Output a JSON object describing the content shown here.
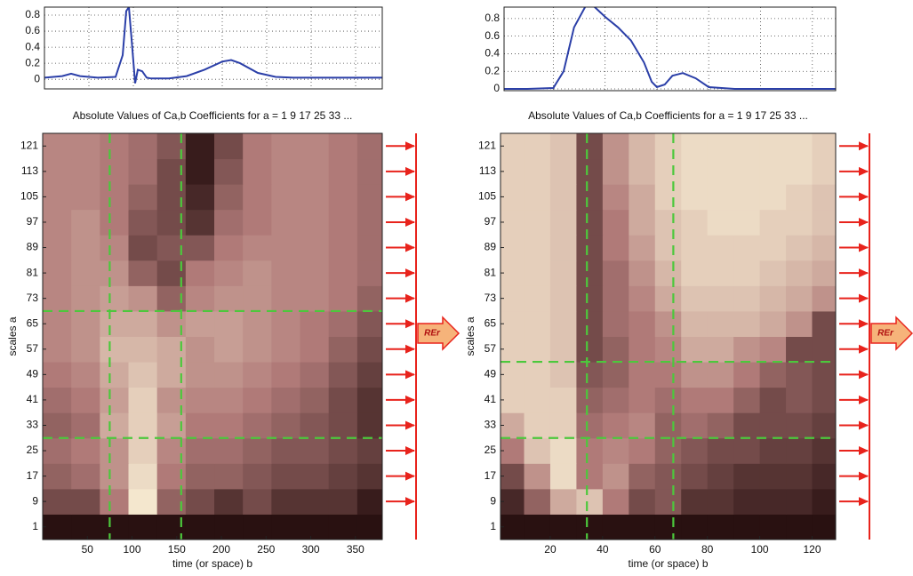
{
  "chart_data": [
    {
      "type": "line",
      "color": "#2b3fa8",
      "x": [
        0,
        20,
        30,
        40,
        60,
        80,
        88,
        92,
        95,
        98,
        102,
        105,
        110,
        115,
        120,
        140,
        160,
        180,
        200,
        210,
        220,
        240,
        260,
        280,
        300,
        330,
        360,
        380
      ],
      "values": [
        0.02,
        0.04,
        0.07,
        0.04,
        0.02,
        0.03,
        0.3,
        0.85,
        0.9,
        0.5,
        -0.05,
        0.12,
        0.1,
        0.02,
        0.01,
        0.01,
        0.04,
        0.12,
        0.22,
        0.24,
        0.2,
        0.08,
        0.03,
        0.02,
        0.02,
        0.02,
        0.02,
        0.02
      ],
      "xlim": [
        0,
        380
      ],
      "ylim": [
        -0.12,
        0.9
      ],
      "yticks": [
        0,
        0.2,
        0.4,
        0.6,
        0.8
      ],
      "xgrid": [
        50,
        100,
        150,
        200,
        250,
        300,
        350
      ]
    },
    {
      "type": "heatmap",
      "title": "Absolute Values of Ca,b Coefficients for a =  1 9 17 25 33 ...",
      "xlabel": "time (or space) b",
      "ylabel": "scales a",
      "x": [
        16,
        48,
        80,
        112,
        144,
        176,
        208,
        240,
        272,
        304,
        336,
        368
      ],
      "y": [
        1,
        9,
        17,
        25,
        33,
        41,
        49,
        57,
        65,
        73,
        81,
        89,
        97,
        105,
        113,
        121
      ],
      "z": [
        [
          0.05,
          0.05,
          0.05,
          0.05,
          0.05,
          0.05,
          0.05,
          0.05,
          0.05,
          0.05,
          0.05,
          0.05
        ],
        [
          0.3,
          0.3,
          0.5,
          0.95,
          0.4,
          0.3,
          0.2,
          0.3,
          0.2,
          0.2,
          0.2,
          0.1
        ],
        [
          0.4,
          0.45,
          0.6,
          0.9,
          0.5,
          0.4,
          0.4,
          0.35,
          0.3,
          0.3,
          0.25,
          0.2
        ],
        [
          0.45,
          0.5,
          0.6,
          0.85,
          0.55,
          0.45,
          0.45,
          0.4,
          0.35,
          0.35,
          0.3,
          0.25
        ],
        [
          0.4,
          0.45,
          0.7,
          0.85,
          0.65,
          0.5,
          0.5,
          0.45,
          0.4,
          0.35,
          0.3,
          0.2
        ],
        [
          0.45,
          0.5,
          0.65,
          0.85,
          0.6,
          0.55,
          0.55,
          0.5,
          0.45,
          0.4,
          0.3,
          0.2
        ],
        [
          0.5,
          0.55,
          0.7,
          0.8,
          0.7,
          0.6,
          0.6,
          0.55,
          0.5,
          0.45,
          0.35,
          0.25
        ],
        [
          0.55,
          0.6,
          0.75,
          0.75,
          0.7,
          0.6,
          0.65,
          0.6,
          0.55,
          0.5,
          0.4,
          0.3
        ],
        [
          0.55,
          0.6,
          0.7,
          0.7,
          0.6,
          0.65,
          0.65,
          0.6,
          0.55,
          0.5,
          0.45,
          0.35
        ],
        [
          0.55,
          0.6,
          0.65,
          0.6,
          0.4,
          0.55,
          0.6,
          0.6,
          0.55,
          0.55,
          0.5,
          0.4
        ],
        [
          0.55,
          0.6,
          0.6,
          0.4,
          0.3,
          0.5,
          0.55,
          0.6,
          0.55,
          0.55,
          0.5,
          0.45
        ],
        [
          0.55,
          0.6,
          0.55,
          0.3,
          0.35,
          0.35,
          0.5,
          0.55,
          0.55,
          0.55,
          0.5,
          0.45
        ],
        [
          0.55,
          0.6,
          0.5,
          0.35,
          0.3,
          0.2,
          0.45,
          0.5,
          0.55,
          0.55,
          0.5,
          0.45
        ],
        [
          0.55,
          0.55,
          0.5,
          0.4,
          0.3,
          0.15,
          0.4,
          0.5,
          0.55,
          0.55,
          0.5,
          0.45
        ],
        [
          0.55,
          0.55,
          0.5,
          0.45,
          0.3,
          0.1,
          0.35,
          0.5,
          0.55,
          0.55,
          0.5,
          0.45
        ],
        [
          0.55,
          0.55,
          0.5,
          0.45,
          0.35,
          0.1,
          0.3,
          0.5,
          0.55,
          0.55,
          0.5,
          0.45
        ]
      ],
      "colormap": [
        "#1a0505",
        "#b07a78",
        "#fbf3d8"
      ],
      "xlim": [
        0,
        380
      ],
      "ylim": [
        -3,
        125
      ],
      "xticks": [
        50,
        100,
        150,
        200,
        250,
        300,
        350
      ],
      "yticks": [
        1,
        9,
        17,
        25,
        33,
        41,
        49,
        57,
        65,
        73,
        81,
        89,
        97,
        105,
        113,
        121
      ],
      "vlines": [
        75,
        155
      ],
      "hlines": [
        69,
        29
      ],
      "line_color": "#4cc83c",
      "annotation": "REr"
    },
    {
      "type": "line",
      "color": "#2b3fa8",
      "x": [
        1,
        10,
        20,
        24,
        28,
        33,
        36,
        40,
        45,
        50,
        55,
        58,
        60,
        63,
        66,
        70,
        75,
        80,
        90,
        100,
        110,
        120,
        129
      ],
      "values": [
        0,
        0,
        0.01,
        0.2,
        0.7,
        0.97,
        0.93,
        0.82,
        0.7,
        0.55,
        0.3,
        0.08,
        0.02,
        0.05,
        0.15,
        0.18,
        0.12,
        0.02,
        0,
        0,
        0,
        0,
        0
      ],
      "xlim": [
        1,
        129
      ],
      "ylim": [
        -0.02,
        0.93
      ],
      "yticks": [
        0,
        0.2,
        0.4,
        0.6,
        0.8
      ],
      "xgrid": [
        20,
        40,
        60,
        80,
        100,
        120
      ]
    },
    {
      "type": "heatmap",
      "title": "Absolute Values of Ca,b Coefficients for a =  1 9 17 25 33 ...",
      "xlabel": "time (or space) b",
      "ylabel": "scales a",
      "x": [
        5,
        15,
        25,
        35,
        45,
        55,
        65,
        75,
        85,
        95,
        105,
        115,
        125
      ],
      "y": [
        1,
        9,
        17,
        25,
        33,
        41,
        49,
        57,
        65,
        73,
        81,
        89,
        97,
        105,
        113,
        121
      ],
      "z": [
        [
          0.05,
          0.05,
          0.05,
          0.05,
          0.05,
          0.05,
          0.05,
          0.05,
          0.05,
          0.05,
          0.05,
          0.05,
          0.05
        ],
        [
          0.15,
          0.4,
          0.7,
          0.8,
          0.5,
          0.3,
          0.35,
          0.2,
          0.2,
          0.15,
          0.15,
          0.15,
          0.1
        ],
        [
          0.3,
          0.6,
          0.9,
          0.5,
          0.6,
          0.4,
          0.35,
          0.3,
          0.25,
          0.2,
          0.2,
          0.2,
          0.15
        ],
        [
          0.5,
          0.8,
          0.9,
          0.5,
          0.55,
          0.5,
          0.4,
          0.35,
          0.3,
          0.3,
          0.25,
          0.25,
          0.2
        ],
        [
          0.7,
          0.85,
          0.85,
          0.45,
          0.5,
          0.55,
          0.4,
          0.45,
          0.4,
          0.3,
          0.3,
          0.3,
          0.25
        ],
        [
          0.85,
          0.85,
          0.85,
          0.4,
          0.45,
          0.5,
          0.45,
          0.5,
          0.5,
          0.4,
          0.3,
          0.35,
          0.3
        ],
        [
          0.85,
          0.85,
          0.8,
          0.35,
          0.4,
          0.5,
          0.5,
          0.6,
          0.6,
          0.5,
          0.4,
          0.35,
          0.3
        ],
        [
          0.85,
          0.85,
          0.8,
          0.3,
          0.4,
          0.5,
          0.55,
          0.7,
          0.7,
          0.6,
          0.55,
          0.3,
          0.3
        ],
        [
          0.85,
          0.85,
          0.8,
          0.3,
          0.45,
          0.5,
          0.6,
          0.75,
          0.75,
          0.75,
          0.7,
          0.6,
          0.3
        ],
        [
          0.85,
          0.85,
          0.8,
          0.3,
          0.45,
          0.55,
          0.7,
          0.8,
          0.8,
          0.8,
          0.75,
          0.7,
          0.6
        ],
        [
          0.85,
          0.85,
          0.8,
          0.3,
          0.45,
          0.6,
          0.75,
          0.85,
          0.85,
          0.85,
          0.8,
          0.75,
          0.7
        ],
        [
          0.85,
          0.85,
          0.8,
          0.3,
          0.5,
          0.65,
          0.8,
          0.85,
          0.85,
          0.85,
          0.85,
          0.8,
          0.75
        ],
        [
          0.85,
          0.85,
          0.8,
          0.3,
          0.5,
          0.7,
          0.8,
          0.85,
          0.9,
          0.9,
          0.85,
          0.85,
          0.8
        ],
        [
          0.85,
          0.85,
          0.8,
          0.3,
          0.55,
          0.7,
          0.85,
          0.9,
          0.9,
          0.9,
          0.9,
          0.85,
          0.8
        ],
        [
          0.85,
          0.85,
          0.8,
          0.3,
          0.6,
          0.75,
          0.85,
          0.9,
          0.9,
          0.9,
          0.9,
          0.9,
          0.85
        ],
        [
          0.85,
          0.85,
          0.8,
          0.3,
          0.6,
          0.75,
          0.85,
          0.9,
          0.9,
          0.9,
          0.9,
          0.9,
          0.85
        ]
      ],
      "colormap": [
        "#1a0505",
        "#b07a78",
        "#fbf3d8"
      ],
      "xlim": [
        1,
        129
      ],
      "ylim": [
        -3,
        125
      ],
      "xticks": [
        20,
        40,
        60,
        80,
        100,
        120
      ],
      "yticks": [
        1,
        9,
        17,
        25,
        33,
        41,
        49,
        57,
        65,
        73,
        81,
        89,
        97,
        105,
        113,
        121
      ],
      "vlines": [
        34,
        67
      ],
      "hlines": [
        53,
        29
      ],
      "line_color": "#4cc83c",
      "annotation": "REr"
    }
  ]
}
